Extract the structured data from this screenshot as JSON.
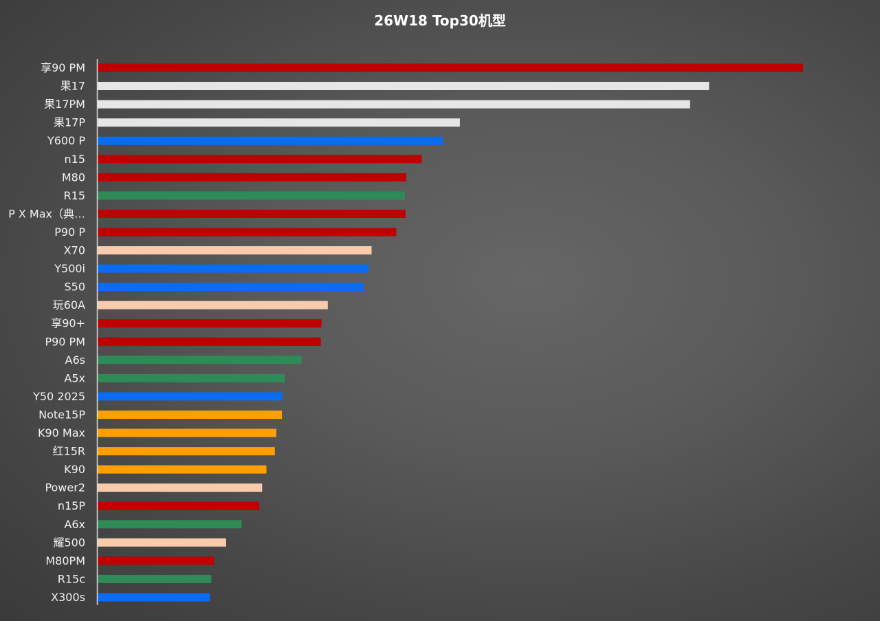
{
  "chart_data": {
    "type": "bar",
    "orientation": "horizontal",
    "title": "26W18 Top30机型",
    "xlabel": "",
    "ylabel": "",
    "xlim": [
      0,
      100
    ],
    "grid": false,
    "legend": "none",
    "categories": [
      "享90 PM",
      "果17",
      "果17PM",
      "果17P",
      "Y600 P",
      "n15",
      "M80",
      "R15",
      "P X Max（典…",
      "P90 P",
      "X70",
      "Y500i",
      "S50",
      "玩60A",
      "享90+",
      "P90 PM",
      "A6s",
      "A5x",
      "Y50 2025",
      "Note15P",
      "K90 Max",
      "红15R",
      "K90",
      "Power2",
      "n15P",
      "A6x",
      "耀500",
      "M80PM",
      "R15c",
      "X300s"
    ],
    "values": [
      100,
      86.7,
      84,
      51.4,
      49,
      46,
      43.8,
      43.6,
      43.7,
      42.4,
      38.9,
      38.5,
      37.8,
      32.7,
      31.8,
      31.7,
      29,
      26.6,
      26.3,
      26.2,
      25.4,
      25.2,
      24,
      23.4,
      23,
      20.5,
      18.3,
      16.6,
      16.2,
      16
    ],
    "colors": [
      "#c00000",
      "#e6e6e6",
      "#e6e6e6",
      "#e6e6e6",
      "#0a6cf0",
      "#c00000",
      "#c00000",
      "#2e8b57",
      "#c00000",
      "#c00000",
      "#f8cbad",
      "#0a6cf0",
      "#0a6cf0",
      "#f8cbad",
      "#c00000",
      "#c00000",
      "#2e8b57",
      "#2e8b57",
      "#0a6cf0",
      "#ffa000",
      "#ffa000",
      "#ffa000",
      "#ffa000",
      "#f8cbad",
      "#c00000",
      "#2e8b57",
      "#f8cbad",
      "#c00000",
      "#2e8b57",
      "#0a6cf0"
    ],
    "axis_color": "#d9d9d9"
  }
}
